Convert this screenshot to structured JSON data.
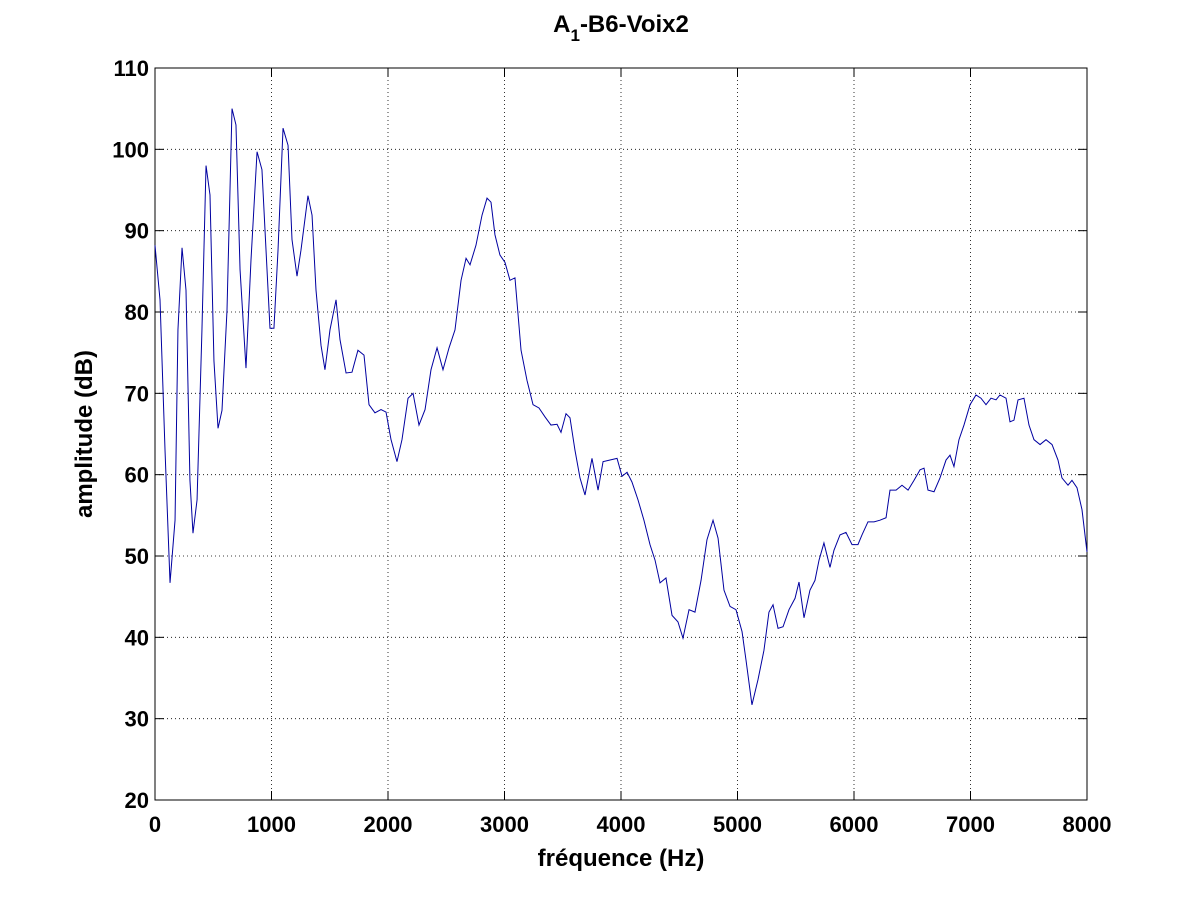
{
  "chart_data": {
    "type": "line",
    "title": [
      "A",
      "1",
      "-B6-Voix2"
    ],
    "x_label": "fréquence (Hz)",
    "y_label": "amplitude (dB)",
    "xlim": [
      0,
      8000
    ],
    "xticks": [
      0,
      1000,
      2000,
      3000,
      4000,
      5000,
      6000,
      7000,
      8000
    ],
    "ylim": [
      20,
      110
    ],
    "yticks": [
      20,
      30,
      40,
      50,
      60,
      70,
      80,
      90,
      100,
      110
    ],
    "grid": true,
    "series": [
      {
        "color": "#0000a0",
        "x": [
          0,
          43,
          86,
          129,
          172,
          197,
          232,
          266,
          300,
          326,
          361,
          403,
          438,
          472,
          506,
          541,
          575,
          618,
          661,
          695,
          730,
          781,
          824,
          876,
          918,
          953,
          987,
          1021,
          1056,
          1099,
          1142,
          1176,
          1219,
          1253,
          1313,
          1348,
          1382,
          1425,
          1459,
          1502,
          1554,
          1588,
          1640,
          1691,
          1742,
          1794,
          1837,
          1888,
          1940,
          1983,
          2026,
          2077,
          2120,
          2172,
          2215,
          2266,
          2318,
          2369,
          2421,
          2472,
          2524,
          2575,
          2627,
          2670,
          2704,
          2755,
          2807,
          2850,
          2884,
          2918,
          2961,
          3004,
          3047,
          3090,
          3142,
          3193,
          3245,
          3296,
          3348,
          3399,
          3451,
          3485,
          3528,
          3562,
          3605,
          3648,
          3691,
          3751,
          3803,
          3846,
          3906,
          3966,
          4009,
          4052,
          4094,
          4146,
          4197,
          4249,
          4292,
          4335,
          4386,
          4438,
          4489,
          4532,
          4584,
          4635,
          4687,
          4738,
          4790,
          4833,
          4884,
          4936,
          4987,
          5039,
          5073,
          5124,
          5176,
          5227,
          5270,
          5305,
          5348,
          5391,
          5442,
          5494,
          5528,
          5571,
          5622,
          5665,
          5700,
          5742,
          5794,
          5828,
          5880,
          5931,
          5983,
          6034,
          6069,
          6120,
          6172,
          6223,
          6275,
          6309,
          6361,
          6412,
          6464,
          6515,
          6567,
          6601,
          6635,
          6687,
          6738,
          6790,
          6824,
          6858,
          6901,
          6944,
          6996,
          7047,
          7090,
          7133,
          7176,
          7219,
          7253,
          7305,
          7339,
          7373,
          7408,
          7459,
          7502,
          7545,
          7597,
          7648,
          7700,
          7751,
          7785,
          7837,
          7871,
          7914,
          7957,
          8000
        ],
        "values": [
          88.2,
          81.5,
          63,
          46.7,
          54.4,
          77.8,
          87.9,
          82.7,
          59.3,
          52.8,
          56.9,
          77.8,
          98,
          94.4,
          74,
          65.7,
          67.9,
          80.2,
          105,
          103,
          85.2,
          73.1,
          86.4,
          99.7,
          97.5,
          87.6,
          78,
          78,
          87.6,
          102.6,
          100.5,
          88.9,
          84.4,
          87.6,
          94.3,
          91.9,
          82.7,
          75.9,
          72.9,
          77.8,
          81.5,
          76.6,
          72.5,
          72.6,
          75.3,
          74.7,
          68.6,
          67.6,
          68,
          67.7,
          64.3,
          61.6,
          64.3,
          69.4,
          70,
          66.1,
          68,
          72.9,
          75.6,
          72.9,
          75.6,
          77.8,
          83.9,
          86.6,
          85.8,
          88.2,
          91.9,
          94,
          93.5,
          89.5,
          87,
          86.1,
          83.9,
          84.2,
          75.3,
          71.6,
          68.6,
          68.2,
          67.1,
          66.1,
          66.2,
          65.2,
          67.5,
          67,
          63,
          59.6,
          57.5,
          62,
          58.1,
          61.6,
          61.8,
          62,
          59.8,
          60.3,
          59.1,
          56.9,
          54.4,
          51.4,
          49.5,
          46.7,
          47.3,
          42.7,
          41.9,
          39.9,
          43.4,
          43.1,
          47,
          52,
          54.4,
          52.2,
          45.8,
          43.8,
          43.4,
          40.7,
          37.2,
          31.7,
          34.8,
          38.4,
          43.1,
          44,
          41.1,
          41.3,
          43.4,
          44.8,
          46.8,
          42.4,
          45.8,
          47,
          49.5,
          51.6,
          48.6,
          50.7,
          52.6,
          52.9,
          51.4,
          51.4,
          52.6,
          54.2,
          54.2,
          54.4,
          54.7,
          58.1,
          58.1,
          58.7,
          58.1,
          59.3,
          60.6,
          60.8,
          58.1,
          57.9,
          59.6,
          61.8,
          62.4,
          61,
          64.3,
          66.1,
          68.6,
          69.8,
          69.4,
          68.6,
          69.4,
          69.2,
          69.8,
          69.4,
          66.5,
          66.7,
          69.2,
          69.4,
          66.1,
          64.3,
          63.7,
          64.3,
          63.7,
          61.8,
          59.6,
          58.7,
          59.3,
          58.4,
          55.7,
          50.5
        ]
      }
    ]
  }
}
